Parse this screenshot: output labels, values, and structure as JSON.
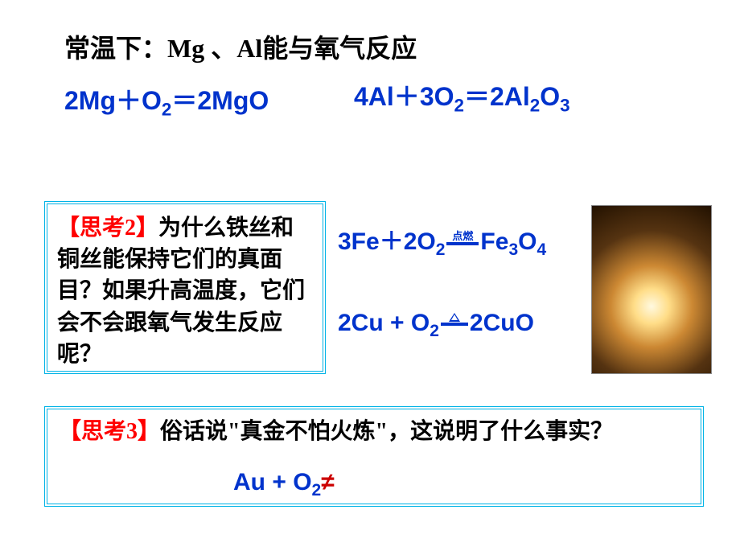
{
  "title": "常温下：Mg 、Al能与氧气反应",
  "equations": {
    "mg": {
      "lhs1": "2Mg",
      "plus": "＋",
      "lhs2": "O",
      "sub2": "2",
      "eq": "＝",
      "rhs": "2MgO"
    },
    "al": {
      "lhs1": "4Al",
      "plus": "＋",
      "lhs2": "3O",
      "sub2": "2",
      "eq": "＝",
      "rhs1": "2Al",
      "sub3": "2",
      "rhs2": "O",
      "sub4": "3"
    },
    "fe": {
      "lhs1": "3Fe",
      "plus": "＋",
      "lhs2": "2O",
      "sub2": "2",
      "cond": "点燃",
      "rhs1": "Fe",
      "sub3": "3",
      "rhs2": "O",
      "sub4": "4"
    },
    "cu": {
      "lhs1": "2Cu",
      "plus": " + ",
      "lhs2": "O",
      "sub2": "2",
      "rhs": "2CuO"
    },
    "au": {
      "lhs1": "Au",
      "plus": " + ",
      "lhs2": "O",
      "sub2": "2",
      "neq": "≠"
    }
  },
  "think2": {
    "label": "【思考2】",
    "text": "为什么铁丝和铜丝能保持它们的真面目？如果升高温度，它们会不会跟氧气发生反应呢？"
  },
  "think3": {
    "label": "【思考3】",
    "text": "俗话说\"真金不怕火炼\"，这说明了什么事实？"
  },
  "colors": {
    "formula": "#0033cc",
    "red": "#ff0000",
    "border": "#00b3e6",
    "neq": "#cc0000"
  }
}
